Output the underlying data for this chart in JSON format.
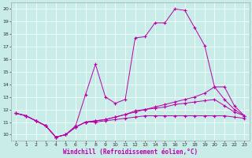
{
  "xlabel": "Windchill (Refroidissement éolien,°C)",
  "xlim": [
    -0.5,
    23.5
  ],
  "ylim": [
    9.5,
    20.5
  ],
  "yticks": [
    10,
    11,
    12,
    13,
    14,
    15,
    16,
    17,
    18,
    19,
    20
  ],
  "xticks": [
    0,
    1,
    2,
    3,
    4,
    5,
    6,
    7,
    8,
    9,
    10,
    11,
    12,
    13,
    14,
    15,
    16,
    17,
    18,
    19,
    20,
    21,
    22,
    23
  ],
  "bg_color": "#c8ece8",
  "line_color": "#bb00aa",
  "line1_y": [
    11.7,
    11.5,
    11.1,
    10.7,
    9.8,
    10.0,
    10.7,
    13.2,
    15.6,
    13.0,
    12.5,
    12.8,
    17.7,
    17.8,
    18.9,
    18.9,
    20.0,
    19.9,
    18.5,
    17.1,
    13.8,
    13.8,
    12.3,
    11.5
  ],
  "line2_y": [
    11.7,
    11.5,
    11.1,
    10.7,
    9.8,
    10.0,
    10.6,
    11.0,
    11.1,
    11.2,
    11.4,
    11.6,
    11.9,
    12.0,
    12.2,
    12.4,
    12.6,
    12.8,
    13.0,
    13.3,
    13.8,
    12.8,
    12.0,
    11.5
  ],
  "line3_y": [
    11.7,
    11.5,
    11.1,
    10.7,
    9.8,
    10.0,
    10.6,
    11.0,
    11.1,
    11.2,
    11.4,
    11.6,
    11.8,
    12.0,
    12.1,
    12.2,
    12.4,
    12.5,
    12.6,
    12.7,
    12.8,
    12.3,
    11.8,
    11.5
  ],
  "line4_y": [
    11.7,
    11.5,
    11.1,
    10.7,
    9.8,
    10.0,
    10.6,
    11.0,
    11.0,
    11.1,
    11.2,
    11.3,
    11.4,
    11.5,
    11.5,
    11.5,
    11.5,
    11.5,
    11.5,
    11.5,
    11.5,
    11.5,
    11.4,
    11.3
  ]
}
